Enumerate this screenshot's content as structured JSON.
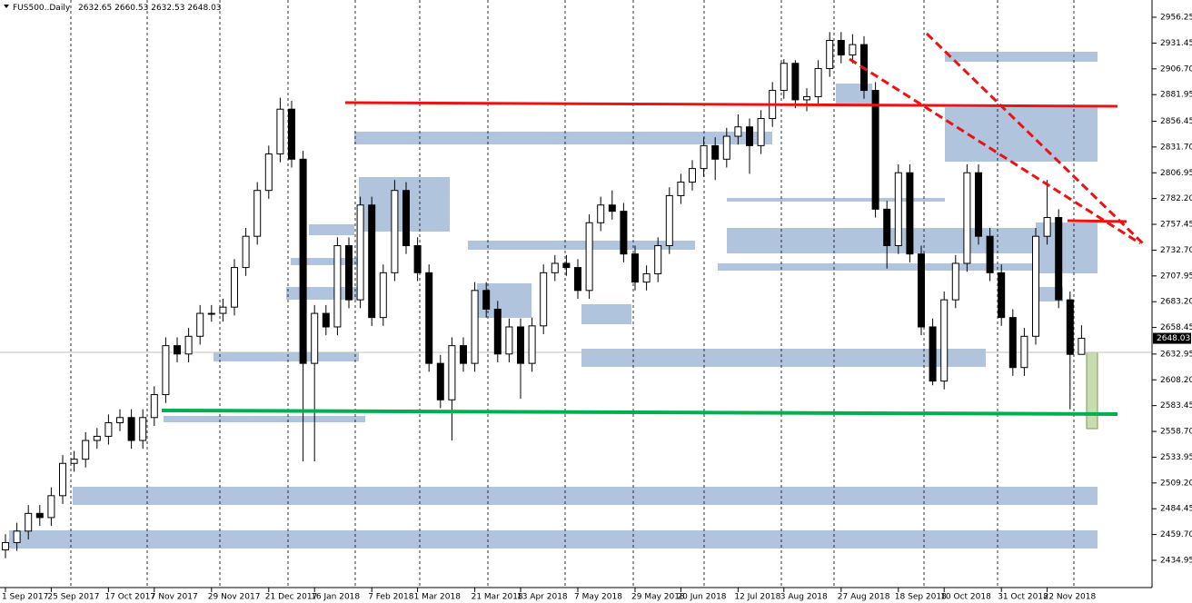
{
  "chart_data": {
    "type": "candlestick",
    "symbol": "FUS500..Daily",
    "ylim": [
      2408.8,
      2972.8
    ],
    "yticks": [
      2956.25,
      2931.45,
      {
        "value": 2906.7,
        "label": "2906.70"
      },
      2881.95,
      2856.45,
      {
        "value": 2831.7,
        "label": "2831.70"
      },
      2806.95,
      {
        "value": 2782.2,
        "label": "2782.20"
      },
      2757.45,
      {
        "value": 2732.7,
        "label": "2732.70"
      },
      2707.95,
      {
        "value": 2683.2,
        "label": "2683.20"
      },
      2658.45,
      2632.95,
      {
        "value": 2608.2,
        "label": "2608.20"
      },
      2583.45,
      {
        "value": 2558.7,
        "label": "2558.70"
      },
      2533.95,
      {
        "value": 2509.2,
        "label": "2509.20"
      },
      2484.45,
      {
        "value": 2459.7,
        "label": "2459.70"
      },
      2434.95
    ],
    "categories": [
      "1 Sep 2017",
      null,
      null,
      null,
      "25 Sep 2017",
      null,
      null,
      null,
      null,
      "17 Oct 2017",
      null,
      null,
      null,
      "7 Nov 2017",
      null,
      null,
      null,
      null,
      "29 Nov 2017",
      null,
      null,
      null,
      null,
      "21 Dec 2017",
      null,
      null,
      null,
      "16 Jan 2018",
      null,
      null,
      null,
      null,
      "7 Feb 2018",
      null,
      null,
      null,
      "1 Mar 2018",
      null,
      null,
      null,
      null,
      "21 Mar 2018",
      null,
      null,
      null,
      "13 Apr 2018",
      null,
      null,
      null,
      null,
      "7 May 2018",
      null,
      null,
      null,
      null,
      "29 May 2018",
      null,
      null,
      null,
      "20 Jun 2018",
      null,
      null,
      null,
      null,
      "12 Jul 2018",
      null,
      null,
      null,
      "3 Aug 2018",
      null,
      null,
      null,
      null,
      "27 Aug 2018",
      null,
      null,
      null,
      null,
      "18 Sep 2018",
      null,
      null,
      null,
      "10 Oct 2018",
      null,
      null,
      null,
      null,
      "31 Oct 2018",
      null,
      null,
      null,
      "22 Nov 2018",
      null,
      null,
      null
    ],
    "open": [
      2445,
      2452,
      2463,
      2480,
      2476,
      2497,
      2528,
      2532,
      2550,
      2554,
      2567,
      2572,
      2550,
      2572,
      2594,
      2641,
      2633,
      2650,
      2672,
      2672,
      2678,
      2716,
      2746,
      2790,
      2825,
      2868,
      2820,
      2624,
      2672,
      2659,
      2737,
      2685,
      2776,
      2668,
      2711,
      2790,
      2737,
      2711,
      2624,
      2589,
      2641,
      2624,
      2694,
      2676,
      2633,
      2659,
      2624,
      2660,
      2711,
      2720,
      2716,
      2694,
      2759,
      2776,
      2770,
      2729,
      2702,
      2710,
      2737,
      2785,
      2798,
      2811,
      2833,
      2820,
      2842,
      2851,
      2833,
      2859,
      2886,
      2912,
      2877,
      2880,
      2907,
      2934,
      2920,
      2930,
      2886,
      2772,
      2737,
      2807,
      2729,
      2659,
      2607,
      2685,
      2720,
      2807,
      2746,
      2711,
      2668,
      2620,
      2650,
      2746,
      2764,
      2685,
      2632.65
    ],
    "high": [
      2460,
      2471,
      2488,
      2488,
      2505,
      2536,
      2540,
      2558,
      2562,
      2575,
      2580,
      2580,
      2580,
      2602,
      2649,
      2649,
      2658,
      2680,
      2680,
      2686,
      2724,
      2754,
      2798,
      2833,
      2879,
      2876,
      2828,
      2680,
      2680,
      2745,
      2745,
      2784,
      2784,
      2719,
      2800,
      2798,
      2745,
      2719,
      2632,
      2649,
      2649,
      2702,
      2702,
      2684,
      2667,
      2667,
      2668,
      2719,
      2728,
      2728,
      2724,
      2767,
      2784,
      2790,
      2778,
      2737,
      2718,
      2745,
      2793,
      2806,
      2819,
      2841,
      2841,
      2850,
      2863,
      2859,
      2867,
      2894,
      2916,
      2915,
      2888,
      2915,
      2942,
      2942,
      2940,
      2938,
      2894,
      2780,
      2815,
      2815,
      2737,
      2667,
      2693,
      2728,
      2815,
      2815,
      2754,
      2719,
      2676,
      2658,
      2754,
      2800,
      2772,
      2693,
      2660.53
    ],
    "low": [
      2437,
      2444,
      2455,
      2468,
      2468,
      2489,
      2520,
      2524,
      2542,
      2546,
      2559,
      2542,
      2542,
      2564,
      2586,
      2625,
      2625,
      2642,
      2664,
      2664,
      2670,
      2708,
      2738,
      2782,
      2817,
      2812,
      2530,
      2530,
      2651,
      2651,
      2677,
      2677,
      2660,
      2660,
      2703,
      2729,
      2703,
      2616,
      2581,
      2550,
      2616,
      2616,
      2668,
      2625,
      2625,
      2590,
      2616,
      2652,
      2703,
      2708,
      2686,
      2686,
      2751,
      2762,
      2721,
      2694,
      2694,
      2702,
      2729,
      2777,
      2790,
      2803,
      2800,
      2812,
      2834,
      2806,
      2825,
      2851,
      2878,
      2869,
      2866,
      2872,
      2899,
      2912,
      2912,
      2878,
      2764,
      2715,
      2729,
      2721,
      2651,
      2603,
      2599,
      2677,
      2712,
      2738,
      2703,
      2660,
      2612,
      2612,
      2642,
      2738,
      2677,
      2580,
      2632.53
    ],
    "close": [
      2452,
      2463,
      2480,
      2476,
      2497,
      2528,
      2532,
      2550,
      2554,
      2567,
      2572,
      2550,
      2572,
      2594,
      2641,
      2633,
      2650,
      2672,
      2672,
      2678,
      2716,
      2746,
      2790,
      2825,
      2868,
      2820,
      2624,
      2672,
      2659,
      2737,
      2685,
      2776,
      2668,
      2711,
      2790,
      2737,
      2711,
      2624,
      2589,
      2641,
      2624,
      2694,
      2676,
      2633,
      2659,
      2624,
      2660,
      2711,
      2720,
      2716,
      2694,
      2759,
      2776,
      2770,
      2729,
      2702,
      2710,
      2737,
      2785,
      2798,
      2811,
      2833,
      2820,
      2842,
      2851,
      2833,
      2859,
      2886,
      2912,
      2877,
      2880,
      2907,
      2934,
      2920,
      2930,
      2886,
      2772,
      2737,
      2807,
      2729,
      2659,
      2607,
      2685,
      2720,
      2807,
      2746,
      2711,
      2668,
      2620,
      2650,
      2746,
      2764,
      2685,
      2632.65,
      2648.03
    ]
  }
}
